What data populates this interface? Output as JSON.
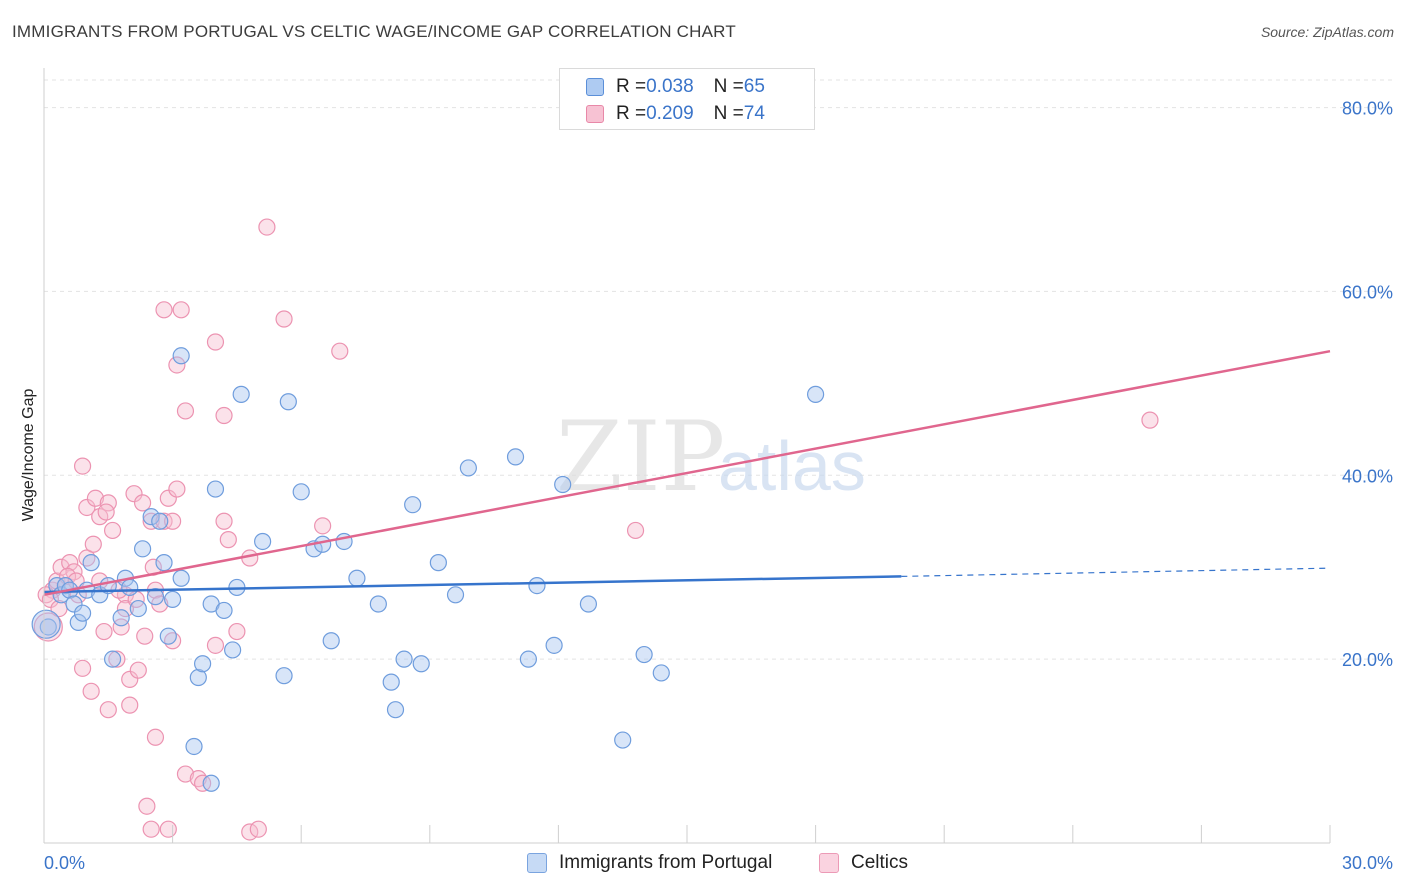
{
  "header": {
    "title": "IMMIGRANTS FROM PORTUGAL VS CELTIC WAGE/INCOME GAP CORRELATION CHART",
    "source": "Source: ZipAtlas.com"
  },
  "watermark": {
    "zip": "ZIP",
    "atlas": "atlas"
  },
  "legend": {
    "rows": [
      {
        "r_label": "R = ",
        "r_value": "0.038",
        "n_label": "N = ",
        "n_value": "65"
      },
      {
        "r_label": "R = ",
        "r_value": "0.209",
        "n_label": "N = ",
        "n_value": "74"
      }
    ]
  },
  "chart_data": {
    "type": "scatter",
    "title": "IMMIGRANTS FROM PORTUGAL VS CELTIC WAGE/INCOME GAP CORRELATION CHART",
    "xlabel": "",
    "ylabel": "Wage/Income Gap",
    "xlim": [
      0,
      30
    ],
    "ylim": [
      0,
      83
    ],
    "x_tick_labels": [
      "0.0%",
      "30.0%"
    ],
    "y_ticks": [
      20,
      40,
      60,
      80
    ],
    "y_tick_labels": [
      "20.0%",
      "40.0%",
      "60.0%",
      "80.0%"
    ],
    "grid": true,
    "legend_position": "top-center",
    "colors": {
      "portugal": "#5b8fd8",
      "celtic": "#e888a8",
      "portugal_line": "#3674cc",
      "celtic_line": "#e0668e"
    },
    "series": [
      {
        "name": "Immigrants from Portugal",
        "r": 0.038,
        "n": 65,
        "trend": {
          "x0": 0,
          "y0": 27.3,
          "x1": 20.0,
          "y1": 29.0,
          "dashed_to_x": 30,
          "dashed_to_y": 29.9
        },
        "points": [
          [
            0.1,
            23.5
          ],
          [
            0.3,
            28.0
          ],
          [
            0.4,
            27.0
          ],
          [
            0.5,
            28.0
          ],
          [
            0.6,
            27.5
          ],
          [
            0.7,
            26.0
          ],
          [
            0.8,
            24.0
          ],
          [
            0.9,
            25.0
          ],
          [
            1.0,
            27.5
          ],
          [
            1.1,
            30.5
          ],
          [
            1.3,
            27.0
          ],
          [
            1.5,
            28.0
          ],
          [
            1.6,
            20.0
          ],
          [
            1.8,
            24.5
          ],
          [
            1.9,
            28.8
          ],
          [
            2.0,
            27.8
          ],
          [
            2.2,
            25.5
          ],
          [
            2.3,
            32.0
          ],
          [
            2.5,
            35.5
          ],
          [
            2.6,
            26.8
          ],
          [
            2.7,
            35.0
          ],
          [
            2.8,
            30.5
          ],
          [
            2.9,
            22.5
          ],
          [
            3.0,
            26.5
          ],
          [
            3.2,
            53.0
          ],
          [
            3.2,
            28.8
          ],
          [
            3.5,
            10.5
          ],
          [
            3.6,
            18.0
          ],
          [
            3.7,
            19.5
          ],
          [
            3.9,
            6.5
          ],
          [
            3.9,
            26.0
          ],
          [
            4.0,
            38.5
          ],
          [
            4.2,
            25.3
          ],
          [
            4.4,
            21.0
          ],
          [
            4.5,
            27.8
          ],
          [
            4.6,
            48.8
          ],
          [
            5.1,
            32.8
          ],
          [
            5.6,
            18.2
          ],
          [
            5.7,
            48.0
          ],
          [
            6.0,
            38.2
          ],
          [
            6.3,
            32.0
          ],
          [
            6.5,
            32.5
          ],
          [
            6.7,
            22.0
          ],
          [
            7.0,
            32.8
          ],
          [
            7.3,
            28.8
          ],
          [
            7.8,
            26.0
          ],
          [
            8.1,
            17.5
          ],
          [
            8.2,
            14.5
          ],
          [
            8.4,
            20.0
          ],
          [
            8.6,
            36.8
          ],
          [
            8.8,
            19.5
          ],
          [
            9.2,
            30.5
          ],
          [
            9.6,
            27.0
          ],
          [
            9.9,
            40.8
          ],
          [
            11.0,
            42.0
          ],
          [
            11.3,
            20.0
          ],
          [
            11.5,
            28.0
          ],
          [
            11.9,
            21.5
          ],
          [
            12.1,
            39.0
          ],
          [
            12.7,
            26.0
          ],
          [
            13.5,
            11.2
          ],
          [
            14.0,
            20.5
          ],
          [
            14.4,
            18.5
          ],
          [
            18.0,
            48.8
          ],
          [
            0.05,
            23.8
          ]
        ]
      },
      {
        "name": "Celtics",
        "r": 0.209,
        "n": 74,
        "trend": {
          "x0": 0,
          "y0": 27.0,
          "x1": 30,
          "y1": 53.5
        },
        "points": [
          [
            0.1,
            23.5
          ],
          [
            0.2,
            27.5
          ],
          [
            0.3,
            28.5
          ],
          [
            0.4,
            30.0
          ],
          [
            0.5,
            28.0
          ],
          [
            0.6,
            30.5
          ],
          [
            0.7,
            29.5
          ],
          [
            0.8,
            27.0
          ],
          [
            0.9,
            19.0
          ],
          [
            0.9,
            41.0
          ],
          [
            1.0,
            31.0
          ],
          [
            1.0,
            36.5
          ],
          [
            1.1,
            16.5
          ],
          [
            1.2,
            37.5
          ],
          [
            1.3,
            28.5
          ],
          [
            1.3,
            35.5
          ],
          [
            1.4,
            23.0
          ],
          [
            1.5,
            14.5
          ],
          [
            1.5,
            37.0
          ],
          [
            1.6,
            34.0
          ],
          [
            1.7,
            20.0
          ],
          [
            1.8,
            23.5
          ],
          [
            1.9,
            27.0
          ],
          [
            1.9,
            25.5
          ],
          [
            2.0,
            15.0
          ],
          [
            2.0,
            17.8
          ],
          [
            2.1,
            38.0
          ],
          [
            2.2,
            18.8
          ],
          [
            2.3,
            37.0
          ],
          [
            2.4,
            4.0
          ],
          [
            2.5,
            1.5
          ],
          [
            2.5,
            35.0
          ],
          [
            2.6,
            27.5
          ],
          [
            2.6,
            11.5
          ],
          [
            2.7,
            26.0
          ],
          [
            2.8,
            35.0
          ],
          [
            2.8,
            58.0
          ],
          [
            2.9,
            37.5
          ],
          [
            2.9,
            1.5
          ],
          [
            3.0,
            22.0
          ],
          [
            3.0,
            35.0
          ],
          [
            3.1,
            52.0
          ],
          [
            3.1,
            38.5
          ],
          [
            3.2,
            58.0
          ],
          [
            3.3,
            7.5
          ],
          [
            3.3,
            47.0
          ],
          [
            3.6,
            7.0
          ],
          [
            3.7,
            6.5
          ],
          [
            4.0,
            54.5
          ],
          [
            4.0,
            21.5
          ],
          [
            4.2,
            46.5
          ],
          [
            4.2,
            35.0
          ],
          [
            4.3,
            33.0
          ],
          [
            4.5,
            23.0
          ],
          [
            4.8,
            31.0
          ],
          [
            4.8,
            1.2
          ],
          [
            5.0,
            1.5
          ],
          [
            5.2,
            67.0
          ],
          [
            5.6,
            57.0
          ],
          [
            6.5,
            34.5
          ],
          [
            6.9,
            53.5
          ],
          [
            13.8,
            34.0
          ],
          [
            25.8,
            46.0
          ],
          [
            0.05,
            27.0
          ],
          [
            0.15,
            26.5
          ],
          [
            0.35,
            25.5
          ],
          [
            0.55,
            29.0
          ],
          [
            0.75,
            28.5
          ],
          [
            1.15,
            32.5
          ],
          [
            1.45,
            36.0
          ],
          [
            1.75,
            27.5
          ],
          [
            2.15,
            26.5
          ],
          [
            2.35,
            22.5
          ],
          [
            2.55,
            30.0
          ]
        ]
      }
    ]
  },
  "bottom_legend": {
    "items": [
      {
        "label": "Immigrants from Portugal"
      },
      {
        "label": "Celtics"
      }
    ]
  }
}
